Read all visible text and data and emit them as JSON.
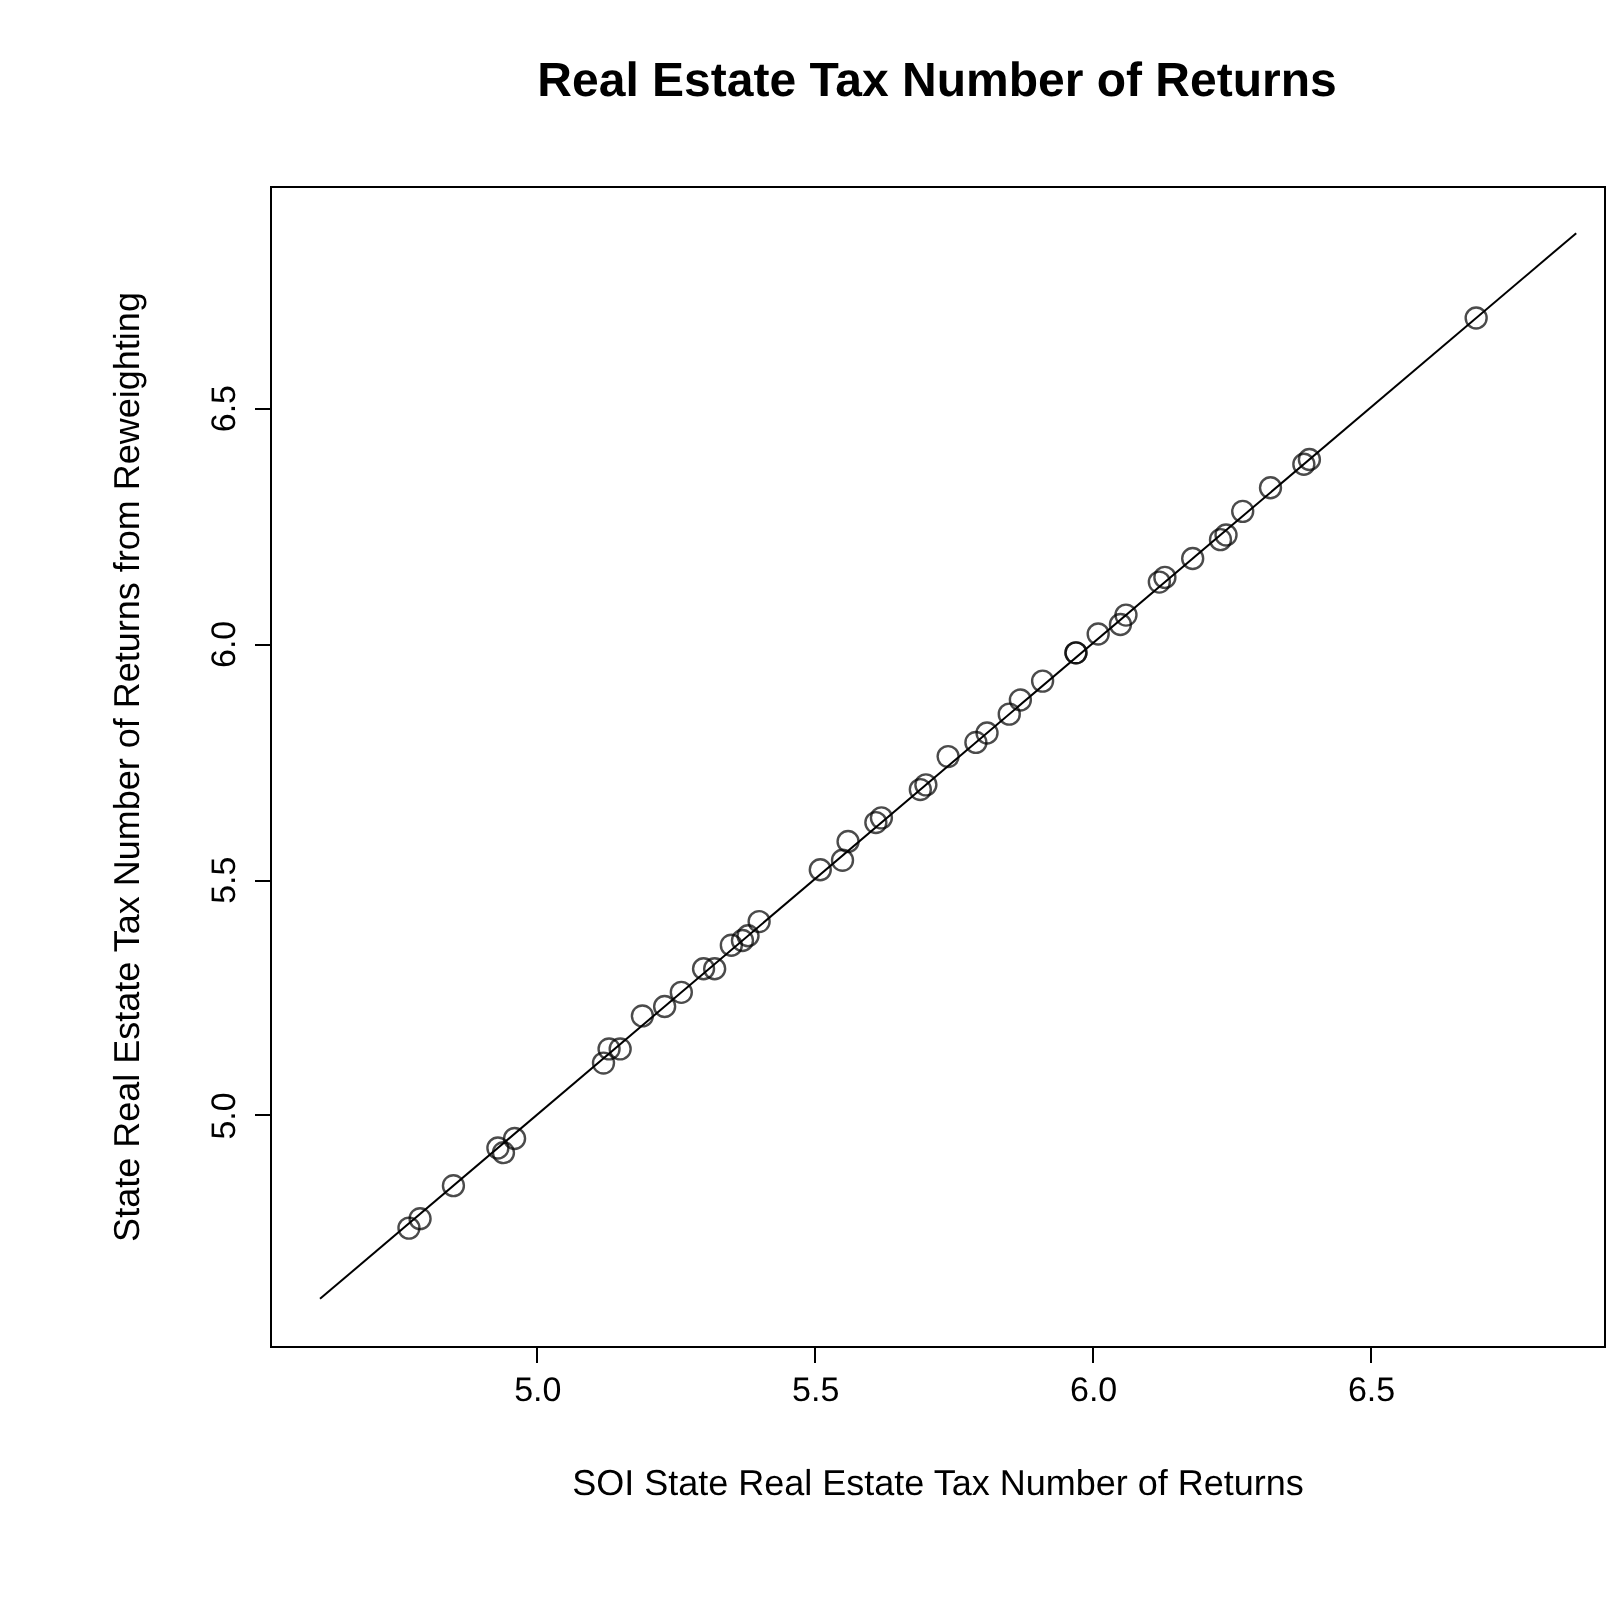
{
  "chart_data": {
    "type": "scatter",
    "title": "Real Estate Tax Number of Returns",
    "xlabel": "SOI State Real Estate Tax Number of Returns",
    "ylabel": "State Real Estate Tax Number of Returns from Reweighting",
    "xlim": [
      4.52,
      6.92
    ],
    "ylim": [
      4.51,
      6.97
    ],
    "xticks": [
      {
        "value": 5,
        "label": "5.0"
      },
      {
        "value": 5.5,
        "label": "5.5"
      },
      {
        "value": 6,
        "label": "6.0"
      },
      {
        "value": 6.5,
        "label": "6.5"
      }
    ],
    "yticks": [
      {
        "value": 5,
        "label": "5.0"
      },
      {
        "value": 5.5,
        "label": "5.5"
      },
      {
        "value": 6,
        "label": "6.0"
      },
      {
        "value": 6.5,
        "label": "6.5"
      }
    ],
    "grid": false,
    "series": [
      {
        "marker": "circle",
        "color": "#000000",
        "x": [
          4.77,
          4.79,
          4.85,
          4.93,
          4.94,
          4.96,
          5.12,
          5.13,
          5.15,
          5.19,
          5.23,
          5.26,
          5.3,
          5.32,
          5.35,
          5.37,
          5.38,
          5.4,
          5.51,
          5.55,
          5.56,
          5.61,
          5.62,
          5.69,
          5.7,
          5.74,
          5.79,
          5.81,
          5.85,
          5.87,
          5.91,
          5.97,
          5.97,
          6.01,
          6.05,
          6.06,
          6.12,
          6.13,
          6.18,
          6.23,
          6.24,
          6.27,
          6.32,
          6.38,
          6.39,
          6.69
        ],
        "values": [
          4.76,
          4.78,
          4.85,
          4.93,
          4.92,
          4.95,
          5.11,
          5.14,
          5.14,
          5.21,
          5.23,
          5.26,
          5.31,
          5.31,
          5.36,
          5.37,
          5.38,
          5.41,
          5.52,
          5.54,
          5.58,
          5.62,
          5.63,
          5.69,
          5.7,
          5.76,
          5.79,
          5.81,
          5.85,
          5.88,
          5.92,
          5.98,
          5.98,
          6.02,
          6.04,
          6.06,
          6.13,
          6.14,
          6.18,
          6.22,
          6.23,
          6.28,
          6.33,
          6.38,
          6.39,
          6.69
        ]
      },
      {
        "type": "line",
        "marker": "none",
        "color": "#000000",
        "x": [
          4.61,
          6.87
        ],
        "values": [
          4.61,
          6.87
        ]
      }
    ]
  }
}
